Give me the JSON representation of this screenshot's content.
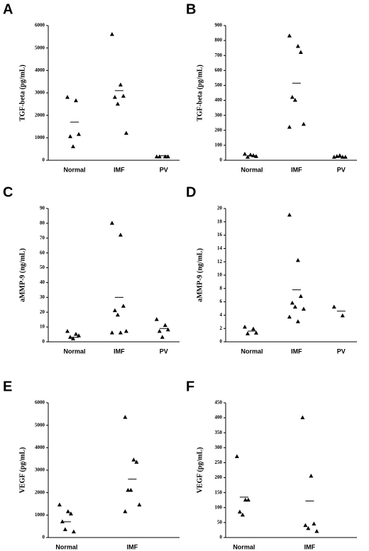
{
  "chart_data": [
    {
      "type": "strip",
      "panel": "A",
      "y_label": "TGF-beta (pg/mL)",
      "categories": [
        "Normal",
        "IMF",
        "PV"
      ],
      "values": [
        [
          2800,
          2650,
          1150,
          1050,
          600
        ],
        [
          5600,
          3350,
          2850,
          2800,
          2500,
          1200
        ],
        [
          150,
          150,
          150,
          150
        ]
      ],
      "means": [
        1700,
        3100,
        200
      ],
      "ylim": [
        0,
        6000
      ],
      "yticks": [
        0,
        1000,
        2000,
        3000,
        4000,
        5000,
        6000
      ],
      "color": "#000000"
    },
    {
      "type": "strip",
      "panel": "B",
      "y_label": "TGF-beta (pg/mL)",
      "categories": [
        "Normal",
        "IMF",
        "PV"
      ],
      "values": [
        [
          40,
          30,
          25,
          20,
          35
        ],
        [
          830,
          760,
          720,
          420,
          400,
          240,
          220
        ],
        [
          20,
          20,
          20,
          25,
          30
        ]
      ],
      "means": [
        30,
        515,
        20
      ],
      "ylim": [
        0,
        900
      ],
      "yticks": [
        0,
        100,
        200,
        300,
        400,
        500,
        600,
        700,
        800,
        900
      ],
      "color": "#000000"
    },
    {
      "type": "strip",
      "panel": "C",
      "y_label": "aMMP-9 (ng/mL)",
      "categories": [
        "Normal",
        "IMF",
        "PV"
      ],
      "values": [
        [
          7,
          5,
          4,
          3,
          2
        ],
        [
          80,
          72,
          24,
          21,
          18,
          7,
          6,
          6
        ],
        [
          15,
          11,
          8,
          7,
          3
        ]
      ],
      "means": [
        3,
        30,
        9
      ],
      "ylim": [
        0,
        90
      ],
      "yticks": [
        0,
        10,
        20,
        30,
        40,
        50,
        60,
        70,
        80,
        90
      ],
      "color": "#000000"
    },
    {
      "type": "strip",
      "panel": "D",
      "y_label": "aMMP-9 (ng/mL)",
      "categories": [
        "Normal",
        "IMF",
        "PV"
      ],
      "values": [
        [
          2.2,
          1.9,
          1.3,
          1.2
        ],
        [
          19,
          12.2,
          6.8,
          5.8,
          5.2,
          4.9,
          3.7,
          3.0
        ],
        [
          5.2,
          3.9
        ]
      ],
      "means": [
        1.6,
        7.8,
        4.6
      ],
      "ylim": [
        0,
        20
      ],
      "yticks": [
        0,
        2,
        4,
        6,
        8,
        10,
        12,
        14,
        16,
        18,
        20
      ],
      "color": "#000000"
    },
    {
      "type": "strip",
      "panel": "E",
      "y_label": "VEGF (pg/mL)",
      "categories": [
        "Normal",
        "IMF"
      ],
      "values": [
        [
          1450,
          1150,
          1050,
          700,
          350,
          250
        ],
        [
          5350,
          3450,
          3350,
          2100,
          2100,
          1450,
          1150
        ]
      ],
      "means": [
        700,
        2600
      ],
      "ylim": [
        0,
        6000
      ],
      "yticks": [
        0,
        1000,
        2000,
        3000,
        4000,
        5000,
        6000
      ],
      "color": "#000000"
    },
    {
      "type": "strip",
      "panel": "F",
      "y_label": "VEGF (pg/mL)",
      "categories": [
        "Normal",
        "IMF"
      ],
      "values": [
        [
          270,
          125,
          125,
          85,
          75
        ],
        [
          400,
          205,
          45,
          40,
          30,
          20
        ]
      ],
      "means": [
        135,
        122
      ],
      "ylim": [
        0,
        450
      ],
      "yticks": [
        0,
        50,
        100,
        150,
        200,
        250,
        300,
        350,
        400,
        450
      ],
      "color": "#000000"
    }
  ]
}
